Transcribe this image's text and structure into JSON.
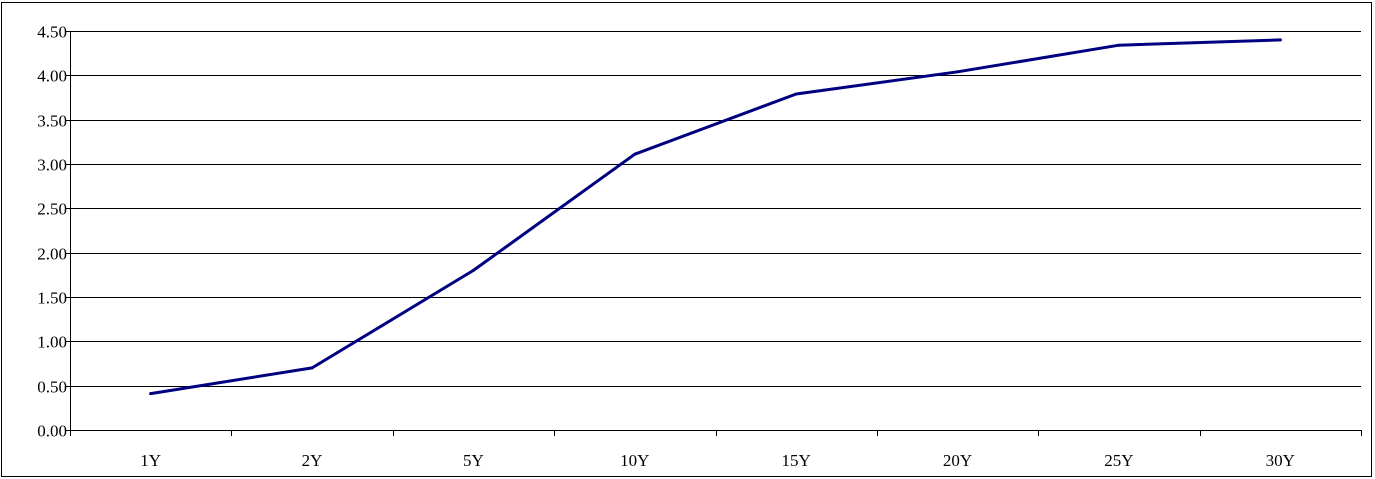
{
  "chart_data": {
    "type": "line",
    "title": "",
    "xlabel": "",
    "ylabel": "",
    "categories": [
      "1Y",
      "2Y",
      "5Y",
      "10Y",
      "15Y",
      "20Y",
      "25Y",
      "30Y"
    ],
    "series": [
      {
        "values": [
          0.41,
          0.7,
          1.8,
          3.11,
          3.79,
          4.04,
          4.34,
          4.4
        ],
        "color": "#000080"
      }
    ],
    "ylim": [
      0,
      4.5
    ],
    "y_ticks": [
      "0.00",
      "0.50",
      "1.00",
      "1.50",
      "2.00",
      "2.50",
      "3.00",
      "3.50",
      "4.00",
      "4.50"
    ],
    "grid": "horizontal",
    "legend": "none"
  }
}
